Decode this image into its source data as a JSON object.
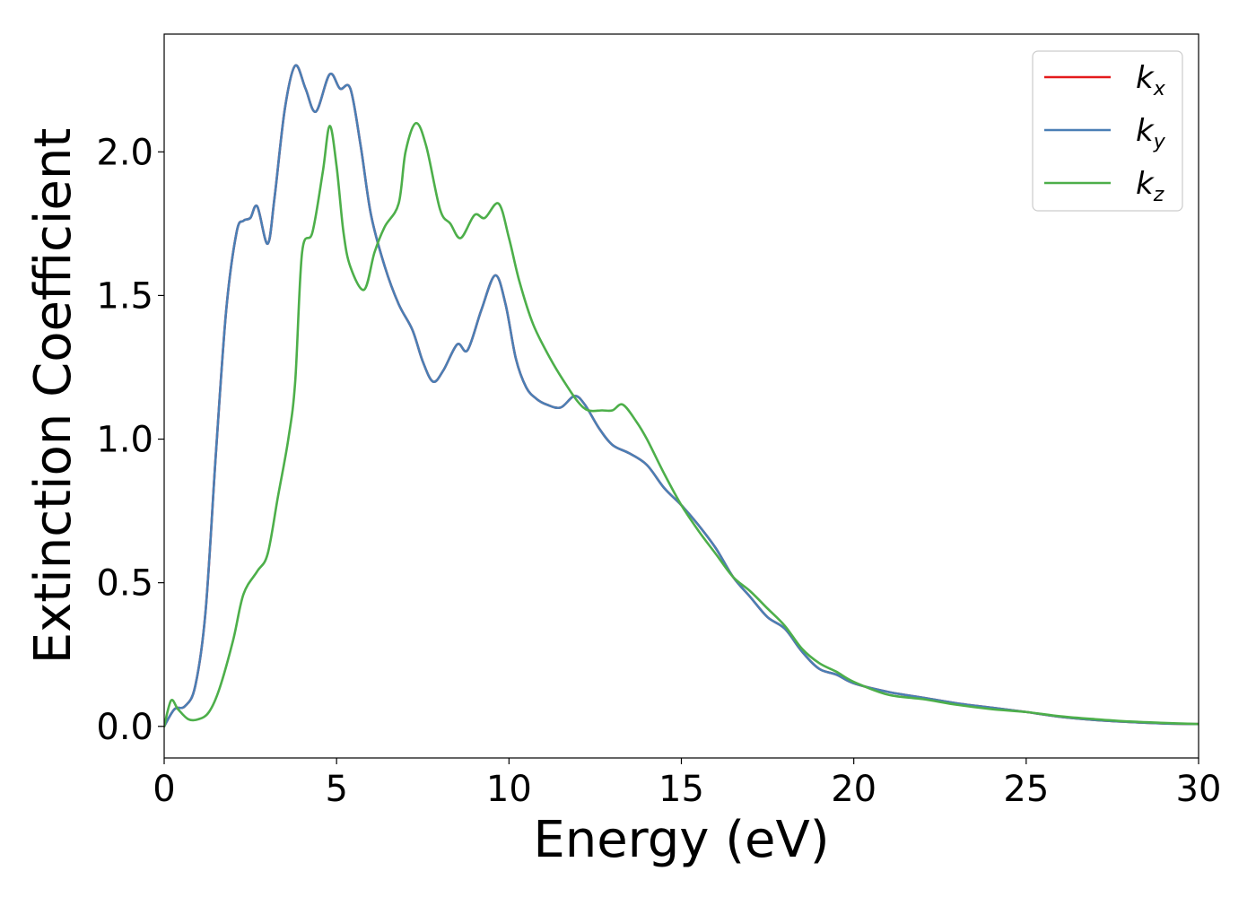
{
  "chart_data": {
    "type": "line",
    "xlabel": "Energy (eV)",
    "ylabel": "Extinction Coefficient",
    "xlim": [
      0,
      30
    ],
    "ylim": [
      -0.11,
      2.41
    ],
    "xticks": [
      0,
      5,
      10,
      15,
      20,
      25,
      30
    ],
    "xtick_labels": [
      "0",
      "5",
      "10",
      "15",
      "20",
      "25",
      "30"
    ],
    "yticks": [
      0.0,
      0.5,
      1.0,
      1.5,
      2.0
    ],
    "ytick_labels": [
      "0.0",
      "0.5",
      "1.0",
      "1.5",
      "2.0"
    ],
    "grid": false,
    "legend_position": "top-right",
    "series": [
      {
        "name": "k",
        "subscript": "x",
        "color": "#e41a1c",
        "x": [
          0,
          0.3,
          0.6,
          0.9,
          1.2,
          1.5,
          1.8,
          2.1,
          2.3,
          2.5,
          2.7,
          3.0,
          3.2,
          3.5,
          3.8,
          4.1,
          4.4,
          4.8,
          5.1,
          5.4,
          5.7,
          6.0,
          6.4,
          6.8,
          7.2,
          7.5,
          7.8,
          8.1,
          8.5,
          8.8,
          9.2,
          9.6,
          9.9,
          10.2,
          10.5,
          10.8,
          11.1,
          11.5,
          11.9,
          12.2,
          12.6,
          13.0,
          13.5,
          14.0,
          14.5,
          15.0,
          15.5,
          16.0,
          16.5,
          17.0,
          17.5,
          18.0,
          18.5,
          19.0,
          19.5,
          20.0,
          21.0,
          22.0,
          23.0,
          24.0,
          25.0,
          26.0,
          27.0,
          28.0,
          29.0,
          30.0
        ],
        "y": [
          0.0,
          0.06,
          0.07,
          0.14,
          0.4,
          0.95,
          1.45,
          1.72,
          1.76,
          1.77,
          1.81,
          1.68,
          1.84,
          2.15,
          2.3,
          2.22,
          2.14,
          2.27,
          2.22,
          2.22,
          2.02,
          1.78,
          1.6,
          1.47,
          1.38,
          1.27,
          1.2,
          1.24,
          1.33,
          1.31,
          1.45,
          1.57,
          1.47,
          1.28,
          1.18,
          1.14,
          1.12,
          1.11,
          1.15,
          1.12,
          1.04,
          0.98,
          0.95,
          0.91,
          0.83,
          0.77,
          0.7,
          0.62,
          0.52,
          0.45,
          0.38,
          0.34,
          0.26,
          0.2,
          0.18,
          0.15,
          0.12,
          0.1,
          0.08,
          0.065,
          0.05,
          0.033,
          0.022,
          0.015,
          0.01,
          0.008
        ]
      },
      {
        "name": "k",
        "subscript": "y",
        "color": "#4a7fb5",
        "x": [
          0,
          0.3,
          0.6,
          0.9,
          1.2,
          1.5,
          1.8,
          2.1,
          2.3,
          2.5,
          2.7,
          3.0,
          3.2,
          3.5,
          3.8,
          4.1,
          4.4,
          4.8,
          5.1,
          5.4,
          5.7,
          6.0,
          6.4,
          6.8,
          7.2,
          7.5,
          7.8,
          8.1,
          8.5,
          8.8,
          9.2,
          9.6,
          9.9,
          10.2,
          10.5,
          10.8,
          11.1,
          11.5,
          11.9,
          12.2,
          12.6,
          13.0,
          13.5,
          14.0,
          14.5,
          15.0,
          15.5,
          16.0,
          16.5,
          17.0,
          17.5,
          18.0,
          18.5,
          19.0,
          19.5,
          20.0,
          21.0,
          22.0,
          23.0,
          24.0,
          25.0,
          26.0,
          27.0,
          28.0,
          29.0,
          30.0
        ],
        "y": [
          0.0,
          0.06,
          0.07,
          0.14,
          0.4,
          0.95,
          1.45,
          1.72,
          1.76,
          1.77,
          1.81,
          1.68,
          1.84,
          2.15,
          2.3,
          2.22,
          2.14,
          2.27,
          2.22,
          2.22,
          2.02,
          1.78,
          1.6,
          1.47,
          1.38,
          1.27,
          1.2,
          1.24,
          1.33,
          1.31,
          1.45,
          1.57,
          1.47,
          1.28,
          1.18,
          1.14,
          1.12,
          1.11,
          1.15,
          1.12,
          1.04,
          0.98,
          0.95,
          0.91,
          0.83,
          0.77,
          0.7,
          0.62,
          0.52,
          0.45,
          0.38,
          0.34,
          0.26,
          0.2,
          0.18,
          0.15,
          0.12,
          0.1,
          0.08,
          0.065,
          0.05,
          0.033,
          0.022,
          0.015,
          0.01,
          0.008
        ]
      },
      {
        "name": "k",
        "subscript": "z",
        "color": "#4daf4a",
        "x": [
          0,
          0.2,
          0.4,
          0.7,
          1.0,
          1.3,
          1.6,
          2.0,
          2.3,
          2.7,
          3.0,
          3.3,
          3.6,
          3.8,
          4.0,
          4.3,
          4.6,
          4.8,
          5.0,
          5.2,
          5.4,
          5.8,
          6.1,
          6.4,
          6.8,
          7.0,
          7.3,
          7.6,
          8.0,
          8.3,
          8.6,
          9.0,
          9.3,
          9.7,
          10.0,
          10.3,
          10.7,
          11.2,
          11.6,
          12.0,
          12.3,
          12.7,
          13.0,
          13.3,
          13.7,
          14.0,
          14.5,
          15.0,
          15.5,
          16.0,
          16.5,
          17.0,
          17.5,
          18.0,
          18.5,
          19.0,
          19.5,
          20.0,
          21.0,
          22.0,
          23.0,
          24.0,
          25.0,
          26.0,
          27.0,
          28.0,
          29.0,
          30.0
        ],
        "y": [
          0.0,
          0.09,
          0.06,
          0.025,
          0.025,
          0.05,
          0.13,
          0.3,
          0.46,
          0.54,
          0.6,
          0.8,
          1.0,
          1.2,
          1.65,
          1.72,
          1.93,
          2.09,
          1.95,
          1.72,
          1.6,
          1.52,
          1.65,
          1.74,
          1.82,
          2.0,
          2.1,
          2.02,
          1.8,
          1.75,
          1.7,
          1.78,
          1.77,
          1.82,
          1.7,
          1.55,
          1.4,
          1.28,
          1.2,
          1.13,
          1.1,
          1.1,
          1.1,
          1.12,
          1.06,
          1.0,
          0.88,
          0.77,
          0.68,
          0.6,
          0.52,
          0.47,
          0.41,
          0.35,
          0.27,
          0.22,
          0.19,
          0.155,
          0.11,
          0.095,
          0.075,
          0.06,
          0.05,
          0.035,
          0.025,
          0.017,
          0.012,
          0.008
        ]
      }
    ]
  }
}
